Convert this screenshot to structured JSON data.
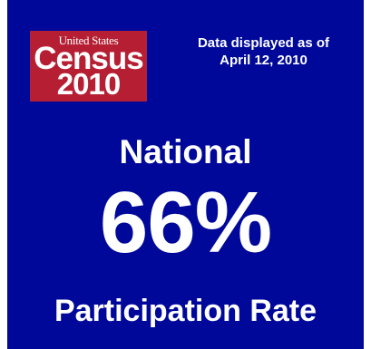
{
  "logo": {
    "line1": "United States",
    "line2": "Census",
    "line3": "2010",
    "color": "#b61f33"
  },
  "as_of": {
    "line1": "Data displayed as of",
    "line2": "April 12, 2010"
  },
  "heading": "National",
  "rate": {
    "value_text": "66%",
    "value": 66
  },
  "caption": "Participation Rate",
  "colors": {
    "background": "#00089a",
    "text": "#ffffff"
  }
}
